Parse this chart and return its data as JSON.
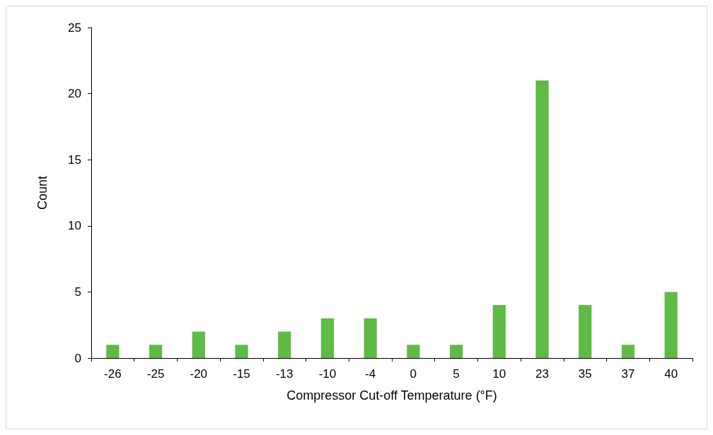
{
  "chart_data": {
    "type": "bar",
    "xlabel": "Compressor Cut-off Temperature (°F)",
    "ylabel": "Count",
    "categories": [
      "-26",
      "-25",
      "-20",
      "-15",
      "-13",
      "-10",
      "-4",
      "0",
      "5",
      "10",
      "23",
      "35",
      "37",
      "40"
    ],
    "values": [
      1,
      1,
      2,
      1,
      2,
      3,
      3,
      1,
      1,
      4,
      21,
      4,
      1,
      5
    ],
    "color": "#5fba46",
    "ylim": [
      0,
      25
    ],
    "yticks": [
      0,
      5,
      10,
      15,
      20,
      25
    ],
    "grid": false
  }
}
